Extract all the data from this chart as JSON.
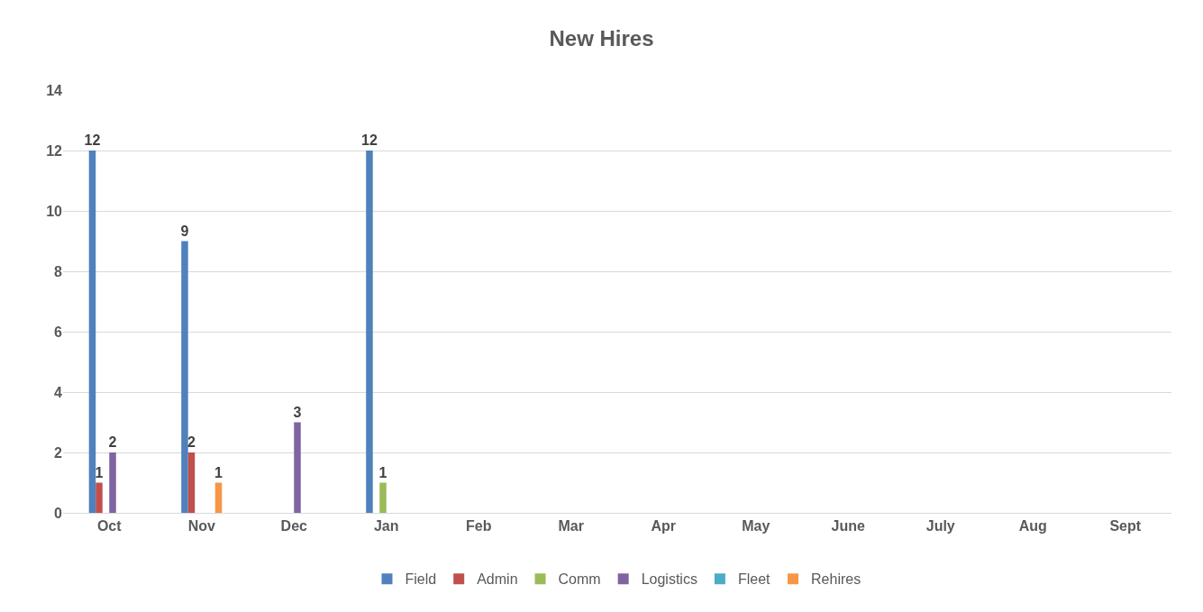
{
  "chart_data": {
    "type": "bar",
    "title": "New Hires",
    "categories": [
      "Oct",
      "Nov",
      "Dec",
      "Jan",
      "Feb",
      "Mar",
      "Apr",
      "May",
      "June",
      "July",
      "Aug",
      "Sept"
    ],
    "series": [
      {
        "name": "Field",
        "color": "#4f81bd",
        "values": [
          12,
          9,
          null,
          12,
          null,
          null,
          null,
          null,
          null,
          null,
          null,
          null
        ]
      },
      {
        "name": "Admin",
        "color": "#c0504d",
        "values": [
          1,
          2,
          null,
          null,
          null,
          null,
          null,
          null,
          null,
          null,
          null,
          null
        ]
      },
      {
        "name": "Comm",
        "color": "#9bbb59",
        "values": [
          null,
          null,
          null,
          1,
          null,
          null,
          null,
          null,
          null,
          null,
          null,
          null
        ]
      },
      {
        "name": "Logistics",
        "color": "#8064a2",
        "values": [
          2,
          null,
          3,
          null,
          null,
          null,
          null,
          null,
          null,
          null,
          null,
          null
        ]
      },
      {
        "name": "Fleet",
        "color": "#4bacc6",
        "values": [
          null,
          null,
          null,
          null,
          null,
          null,
          null,
          null,
          null,
          null,
          null,
          null
        ]
      },
      {
        "name": "Rehires",
        "color": "#f79646",
        "values": [
          null,
          1,
          null,
          null,
          null,
          null,
          null,
          null,
          null,
          null,
          null,
          null
        ]
      }
    ],
    "ylim": [
      0,
      14
    ],
    "yticks": [
      0,
      2,
      4,
      6,
      8,
      10,
      12,
      14
    ],
    "grid": "y",
    "legend": "bottom",
    "data_labels": true
  }
}
